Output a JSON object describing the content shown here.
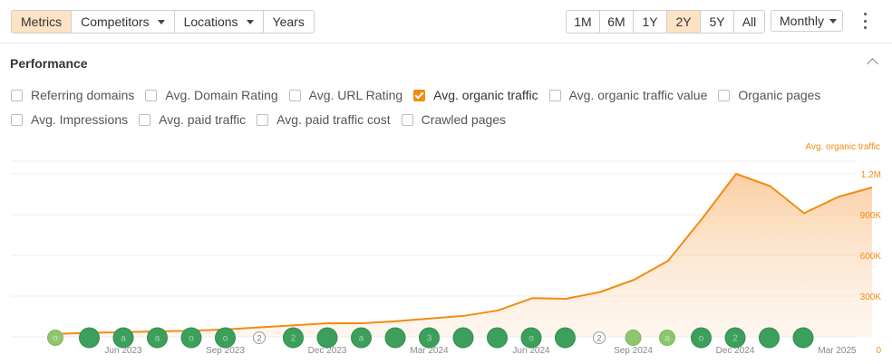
{
  "toolbar": {
    "tabs": [
      {
        "label": "Metrics",
        "active": true,
        "dropdown": false
      },
      {
        "label": "Competitors",
        "active": false,
        "dropdown": true
      },
      {
        "label": "Locations",
        "active": false,
        "dropdown": true
      },
      {
        "label": "Years",
        "active": false,
        "dropdown": false
      }
    ],
    "ranges": [
      {
        "label": "1M",
        "active": false
      },
      {
        "label": "6M",
        "active": false
      },
      {
        "label": "1Y",
        "active": false
      },
      {
        "label": "2Y",
        "active": true
      },
      {
        "label": "5Y",
        "active": false
      },
      {
        "label": "All",
        "active": false
      }
    ],
    "interval": "Monthly",
    "accent_active": "#fde2c3"
  },
  "section": {
    "title": "Performance"
  },
  "metrics": [
    [
      {
        "label": "Referring domains",
        "checked": false
      },
      {
        "label": "Avg. Domain Rating",
        "checked": false
      },
      {
        "label": "Avg. URL Rating",
        "checked": false
      },
      {
        "label": "Avg. organic traffic",
        "checked": true
      },
      {
        "label": "Avg. organic traffic value",
        "checked": false
      },
      {
        "label": "Organic pages",
        "checked": false
      }
    ],
    [
      {
        "label": "Avg. Impressions",
        "checked": false
      },
      {
        "label": "Avg. paid traffic",
        "checked": false
      },
      {
        "label": "Avg. paid traffic cost",
        "checked": false
      },
      {
        "label": "Crawled pages",
        "checked": false
      }
    ]
  ],
  "chart_data": {
    "type": "area",
    "series": [
      {
        "name": "Avg. organic traffic",
        "color": "#f28c13",
        "values": [
          22000,
          30000,
          35000,
          40000,
          45000,
          55000,
          70000,
          85000,
          100000,
          100000,
          115000,
          135000,
          155000,
          195000,
          285000,
          280000,
          330000,
          420000,
          560000,
          870000,
          1200000,
          1110000,
          910000,
          1030000,
          1100000
        ]
      }
    ],
    "y_ticks": [
      "0",
      "300K",
      "600K",
      "900K",
      "1.2M"
    ],
    "y_tick_values": [
      0,
      300000,
      600000,
      900000,
      1200000
    ],
    "ylim": [
      0,
      1200000
    ],
    "x_tick_labels": [
      "Jun 2023",
      "Sep 2023",
      "Dec 2023",
      "Mar 2024",
      "Jun 2024",
      "Sep 2024",
      "Dec 2024",
      "Mar 2025"
    ],
    "x_tick_indices": [
      2,
      5,
      8,
      11,
      14,
      17,
      20,
      23
    ],
    "grid": true,
    "legend": "top-right",
    "markers": [
      {
        "index": 0,
        "kind": "light",
        "glyph": "o"
      },
      {
        "index": 1,
        "kind": "dark",
        "glyph": ""
      },
      {
        "index": 2,
        "kind": "dark",
        "glyph": "a"
      },
      {
        "index": 3,
        "kind": "dark",
        "glyph": "a"
      },
      {
        "index": 4,
        "kind": "dark",
        "glyph": "o"
      },
      {
        "index": 5,
        "kind": "dark",
        "glyph": "o"
      },
      {
        "index": 6,
        "kind": "outline",
        "glyph": "2"
      },
      {
        "index": 7,
        "kind": "dark",
        "glyph": "2"
      },
      {
        "index": 8,
        "kind": "dark",
        "glyph": ""
      },
      {
        "index": 9,
        "kind": "dark",
        "glyph": "a"
      },
      {
        "index": 10,
        "kind": "dark",
        "glyph": ""
      },
      {
        "index": 11,
        "kind": "dark",
        "glyph": "3"
      },
      {
        "index": 12,
        "kind": "dark",
        "glyph": ""
      },
      {
        "index": 13,
        "kind": "dark",
        "glyph": ""
      },
      {
        "index": 14,
        "kind": "dark",
        "glyph": "o"
      },
      {
        "index": 15,
        "kind": "dark",
        "glyph": ""
      },
      {
        "index": 16,
        "kind": "outline",
        "glyph": "2"
      },
      {
        "index": 17,
        "kind": "light",
        "glyph": ""
      },
      {
        "index": 18,
        "kind": "light",
        "glyph": "a"
      },
      {
        "index": 19,
        "kind": "dark",
        "glyph": "o"
      },
      {
        "index": 20,
        "kind": "dark",
        "glyph": "2"
      },
      {
        "index": 21,
        "kind": "dark",
        "glyph": ""
      },
      {
        "index": 22,
        "kind": "dark",
        "glyph": ""
      }
    ],
    "marker_colors": {
      "dark": "#3c9f5b",
      "light": "#8dc66c",
      "outline": "#ffffff"
    }
  },
  "icons": {
    "menu": "kebab-menu-icon",
    "collapse": "chevron-up-icon"
  }
}
